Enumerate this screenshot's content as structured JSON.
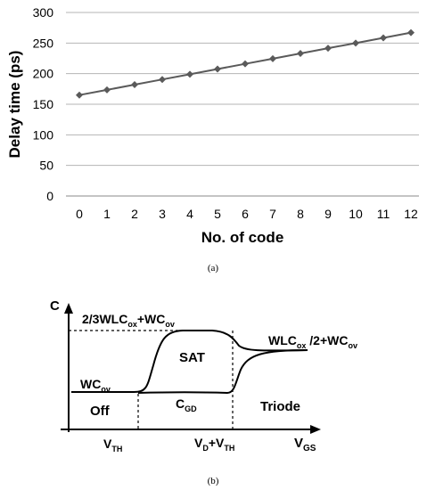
{
  "chart_data": [
    {
      "type": "line",
      "x": [
        0,
        1,
        2,
        3,
        4,
        5,
        6,
        7,
        8,
        9,
        10,
        11,
        12
      ],
      "values": [
        165,
        173.5,
        182,
        190.5,
        199,
        207.5,
        216,
        224.5,
        233,
        241.5,
        250,
        258.5,
        267
      ],
      "xlabel": "No. of code",
      "ylabel": "Delay time (ps)",
      "ylim": [
        0,
        300
      ],
      "y_ticks": [
        0,
        50,
        100,
        150,
        200,
        250,
        300
      ],
      "x_ticks": [
        0,
        1,
        2,
        3,
        4,
        5,
        6,
        7,
        8,
        9,
        10,
        11,
        12
      ],
      "grid": "horizontal",
      "caption": "(a)",
      "line_color": "#5a5a5a",
      "marker": "diamond"
    },
    {
      "type": "diagram",
      "caption": "(b)",
      "y_axis_label": "C",
      "x_axis_label": {
        "main": "V",
        "sub": "GS"
      },
      "labels": {
        "cap_sat": {
          "p1": "2/3WLC",
          "s1": "ox",
          "p2": "+WC",
          "s2": "ov"
        },
        "cap_triode": {
          "p1": "WLC",
          "s1": "ox",
          "p2": " /2+WC",
          "s2": "ov"
        },
        "cap_off": {
          "p1": "WC",
          "s1": "ov"
        },
        "cgd": {
          "p1": "C",
          "s1": "GD"
        },
        "vth": {
          "p1": "V",
          "s1": "TH"
        },
        "vd_vth": {
          "p1": "V",
          "s1": "D",
          "p2": "+V",
          "s2": "TH"
        },
        "region_off": "Off",
        "region_sat": "SAT",
        "region_triode": "Triode"
      }
    }
  ]
}
